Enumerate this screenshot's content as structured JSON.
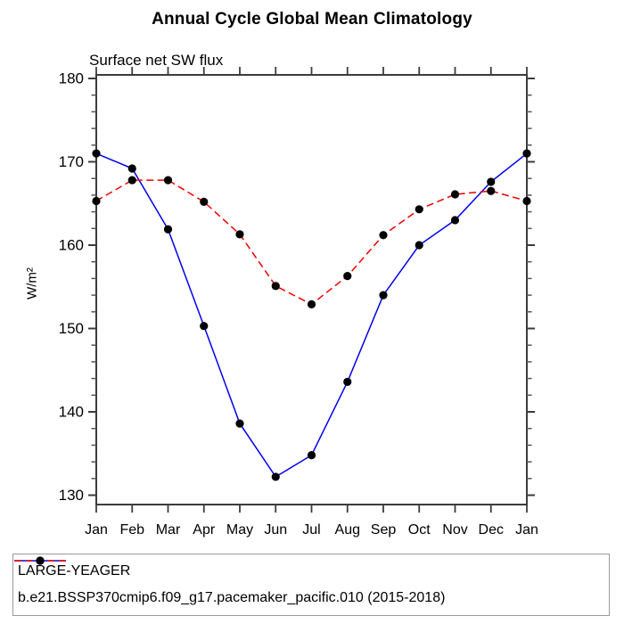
{
  "title": "Annual Cycle Global Mean Climatology",
  "subtitle": "Surface net SW flux",
  "y_axis_title": "W/m²",
  "chart_data": {
    "type": "line",
    "categories": [
      "Jan",
      "Feb",
      "Mar",
      "Apr",
      "May",
      "Jun",
      "Jul",
      "Aug",
      "Sep",
      "Oct",
      "Nov",
      "Dec",
      "Jan"
    ],
    "series": [
      {
        "name": "LARGE-YEAGER",
        "color": "#0000ee",
        "line_style": "solid",
        "marker": "black-dot",
        "values": [
          171.0,
          169.2,
          161.9,
          150.3,
          138.6,
          132.2,
          134.8,
          143.6,
          154.0,
          160.0,
          163.0,
          167.6,
          171.0
        ]
      },
      {
        "name": "b.e21.BSSP370cmip6.f09_g17.pacemaker_pacific.010 (2015-2018)",
        "color": "#ee0000",
        "line_style": "dashed",
        "marker": "black-dot",
        "values": [
          165.3,
          167.8,
          167.8,
          165.2,
          161.3,
          155.1,
          152.9,
          156.3,
          161.2,
          164.3,
          166.1,
          166.5,
          165.3
        ]
      }
    ],
    "xlabel": "",
    "ylabel": "W/m²",
    "ylim": [
      130,
      180
    ],
    "yticks": [
      130,
      140,
      150,
      160,
      170,
      180
    ],
    "y_minor_tick_step": 2,
    "grid": false,
    "legend_position": "bottom",
    "marker_color": "#000000",
    "axis_color": "#3c3c3c"
  }
}
